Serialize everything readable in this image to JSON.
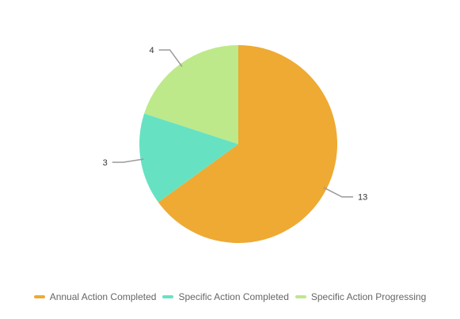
{
  "chart_data": {
    "type": "pie",
    "categories": [
      "Annual Action Completed",
      "Specific Action Completed",
      "Specific Action Progressing"
    ],
    "values": [
      13,
      3,
      4
    ],
    "colors": [
      "#eeaa33",
      "#66e2c3",
      "#bde98a"
    ],
    "data_labels": [
      "13",
      "3",
      "4"
    ],
    "title": "",
    "legend_position": "bottom-center",
    "start_angle": "top, clockwise"
  }
}
